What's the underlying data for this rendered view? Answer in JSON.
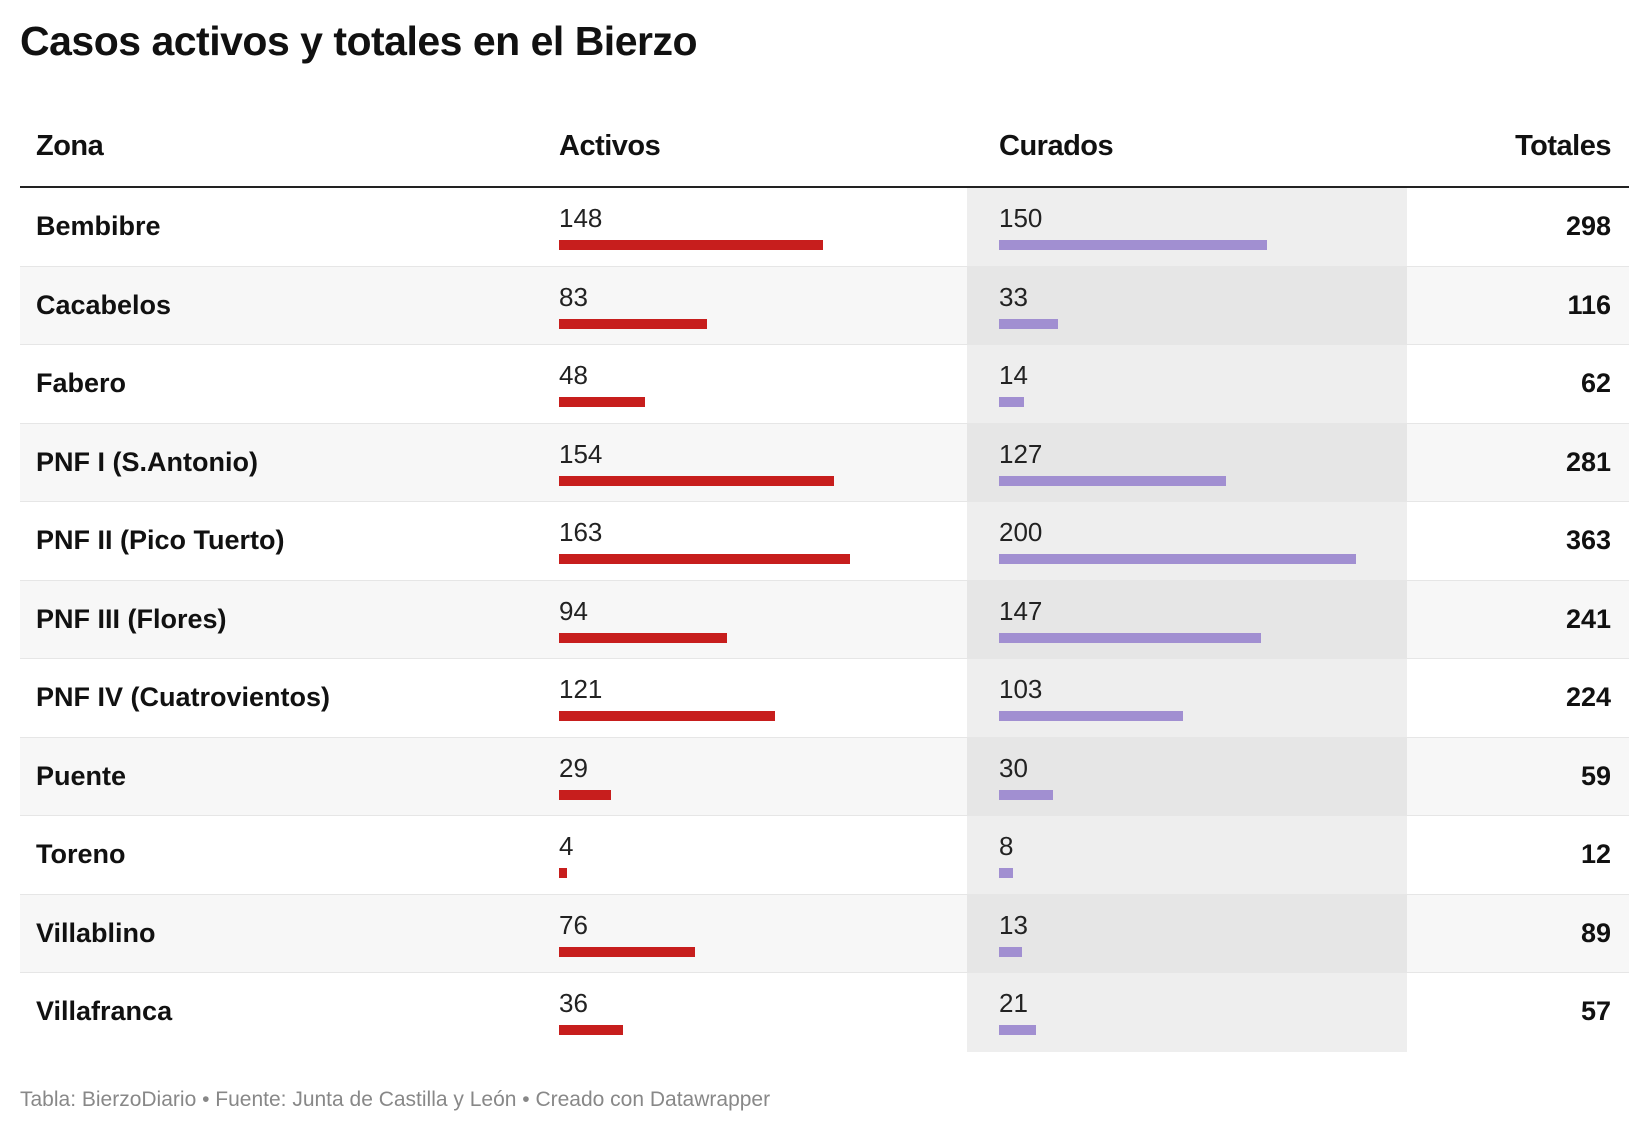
{
  "title": "Casos activos y totales en el Bierzo",
  "colors": {
    "activos": "#c71e1d",
    "curados": "#a18fd1",
    "curados_bg": "#eeeeee"
  },
  "columns": {
    "zona": "Zona",
    "activos": "Activos",
    "curados": "Curados",
    "totales": "Totales"
  },
  "footer": "Tabla: BierzoDiario • Fuente: Junta de Castilla y León • Creado con Datawrapper",
  "chart_data": {
    "type": "table",
    "title": "Casos activos y totales en el Bierzo",
    "columns": [
      "Zona",
      "Activos",
      "Curados",
      "Totales"
    ],
    "rows": [
      {
        "zona": "Bembibre",
        "activos": 148,
        "curados": 150,
        "totales": 298
      },
      {
        "zona": "Cacabelos",
        "activos": 83,
        "curados": 33,
        "totales": 116
      },
      {
        "zona": "Fabero",
        "activos": 48,
        "curados": 14,
        "totales": 62
      },
      {
        "zona": "PNF I (S.Antonio)",
        "activos": 154,
        "curados": 127,
        "totales": 281
      },
      {
        "zona": "PNF II (Pico Tuerto)",
        "activos": 163,
        "curados": 200,
        "totales": 363
      },
      {
        "zona": "PNF III (Flores)",
        "activos": 94,
        "curados": 147,
        "totales": 241
      },
      {
        "zona": "PNF IV (Cuatrovientos)",
        "activos": 121,
        "curados": 103,
        "totales": 224
      },
      {
        "zona": "Puente",
        "activos": 29,
        "curados": 30,
        "totales": 59
      },
      {
        "zona": "Toreno",
        "activos": 4,
        "curados": 8,
        "totales": 12
      },
      {
        "zona": "Villablino",
        "activos": 76,
        "curados": 13,
        "totales": 89
      },
      {
        "zona": "Villafranca",
        "activos": 36,
        "curados": 21,
        "totales": 57
      }
    ]
  }
}
